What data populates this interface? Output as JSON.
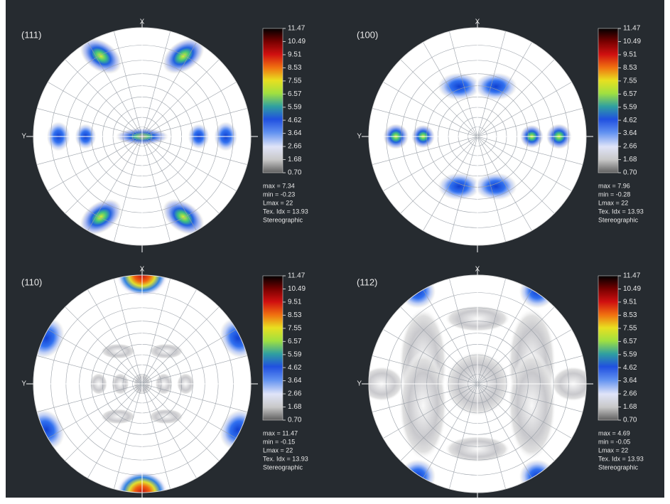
{
  "panels": [
    {
      "title": "(111)",
      "x_label": "X",
      "y_label": "Y",
      "colorbar": {
        "ticks": [
          {
            "value": 11.47,
            "label": "11.47"
          },
          {
            "value": 10.49,
            "label": "10.49"
          },
          {
            "value": 9.51,
            "label": "9.51"
          },
          {
            "value": 8.53,
            "label": "8.53"
          },
          {
            "value": 7.55,
            "label": "7.55"
          },
          {
            "value": 6.57,
            "label": "6.57"
          },
          {
            "value": 5.59,
            "label": "5.59"
          },
          {
            "value": 4.62,
            "label": "4.62"
          },
          {
            "value": 3.64,
            "label": "3.64"
          },
          {
            "value": 2.66,
            "label": "2.66"
          },
          {
            "value": 1.68,
            "label": "1.68"
          },
          {
            "value": 0.7,
            "label": "0.70"
          }
        ]
      },
      "stats": [
        "max = 7.34",
        "min = -0.23",
        "Lmax = 22",
        "Tex. Idx = 13.93"
      ],
      "projection": "Stereographic"
    },
    {
      "title": "(100)",
      "x_label": "X",
      "y_label": "Y",
      "colorbar": {
        "ticks": [
          {
            "value": 11.47,
            "label": "11.47"
          },
          {
            "value": 10.49,
            "label": "10.49"
          },
          {
            "value": 9.51,
            "label": "9.51"
          },
          {
            "value": 8.53,
            "label": "8.53"
          },
          {
            "value": 7.55,
            "label": "7.55"
          },
          {
            "value": 6.57,
            "label": "6.57"
          },
          {
            "value": 5.59,
            "label": "5.59"
          },
          {
            "value": 4.62,
            "label": "4.62"
          },
          {
            "value": 3.64,
            "label": "3.64"
          },
          {
            "value": 2.66,
            "label": "2.66"
          },
          {
            "value": 1.68,
            "label": "1.68"
          },
          {
            "value": 0.7,
            "label": "0.70"
          }
        ]
      },
      "stats": [
        "max = 7.96",
        "min = -0.28",
        "Lmax = 22",
        "Tex. Idx = 13.93"
      ],
      "projection": "Stereographic"
    },
    {
      "title": "(110)",
      "x_label": "X",
      "y_label": "Y",
      "colorbar": {
        "ticks": [
          {
            "value": 11.47,
            "label": "11.47"
          },
          {
            "value": 10.49,
            "label": "10.49"
          },
          {
            "value": 9.51,
            "label": "9.51"
          },
          {
            "value": 8.53,
            "label": "8.53"
          },
          {
            "value": 7.55,
            "label": "7.55"
          },
          {
            "value": 6.57,
            "label": "6.57"
          },
          {
            "value": 5.59,
            "label": "5.59"
          },
          {
            "value": 4.62,
            "label": "4.62"
          },
          {
            "value": 3.64,
            "label": "3.64"
          },
          {
            "value": 2.66,
            "label": "2.66"
          },
          {
            "value": 1.68,
            "label": "1.68"
          },
          {
            "value": 0.7,
            "label": "0.70"
          }
        ]
      },
      "stats": [
        "max = 11.47",
        "min = -0.15",
        "Lmax = 22",
        "Tex. Idx = 13.93"
      ],
      "projection": "Stereographic"
    },
    {
      "title": "(112)",
      "x_label": "X",
      "y_label": "Y",
      "colorbar": {
        "ticks": [
          {
            "value": 11.47,
            "label": "11.47"
          },
          {
            "value": 10.49,
            "label": "10.49"
          },
          {
            "value": 9.51,
            "label": "9.51"
          },
          {
            "value": 8.53,
            "label": "8.53"
          },
          {
            "value": 7.55,
            "label": "7.55"
          },
          {
            "value": 6.57,
            "label": "6.57"
          },
          {
            "value": 5.59,
            "label": "5.59"
          },
          {
            "value": 4.62,
            "label": "4.62"
          },
          {
            "value": 3.64,
            "label": "3.64"
          },
          {
            "value": 2.66,
            "label": "2.66"
          },
          {
            "value": 1.68,
            "label": "1.68"
          },
          {
            "value": 0.7,
            "label": "0.70"
          }
        ]
      },
      "stats": [
        "max = 4.69",
        "min = -0.05",
        "Lmax = 22",
        "Tex. Idx = 13.93"
      ],
      "projection": "Stereographic"
    }
  ]
}
